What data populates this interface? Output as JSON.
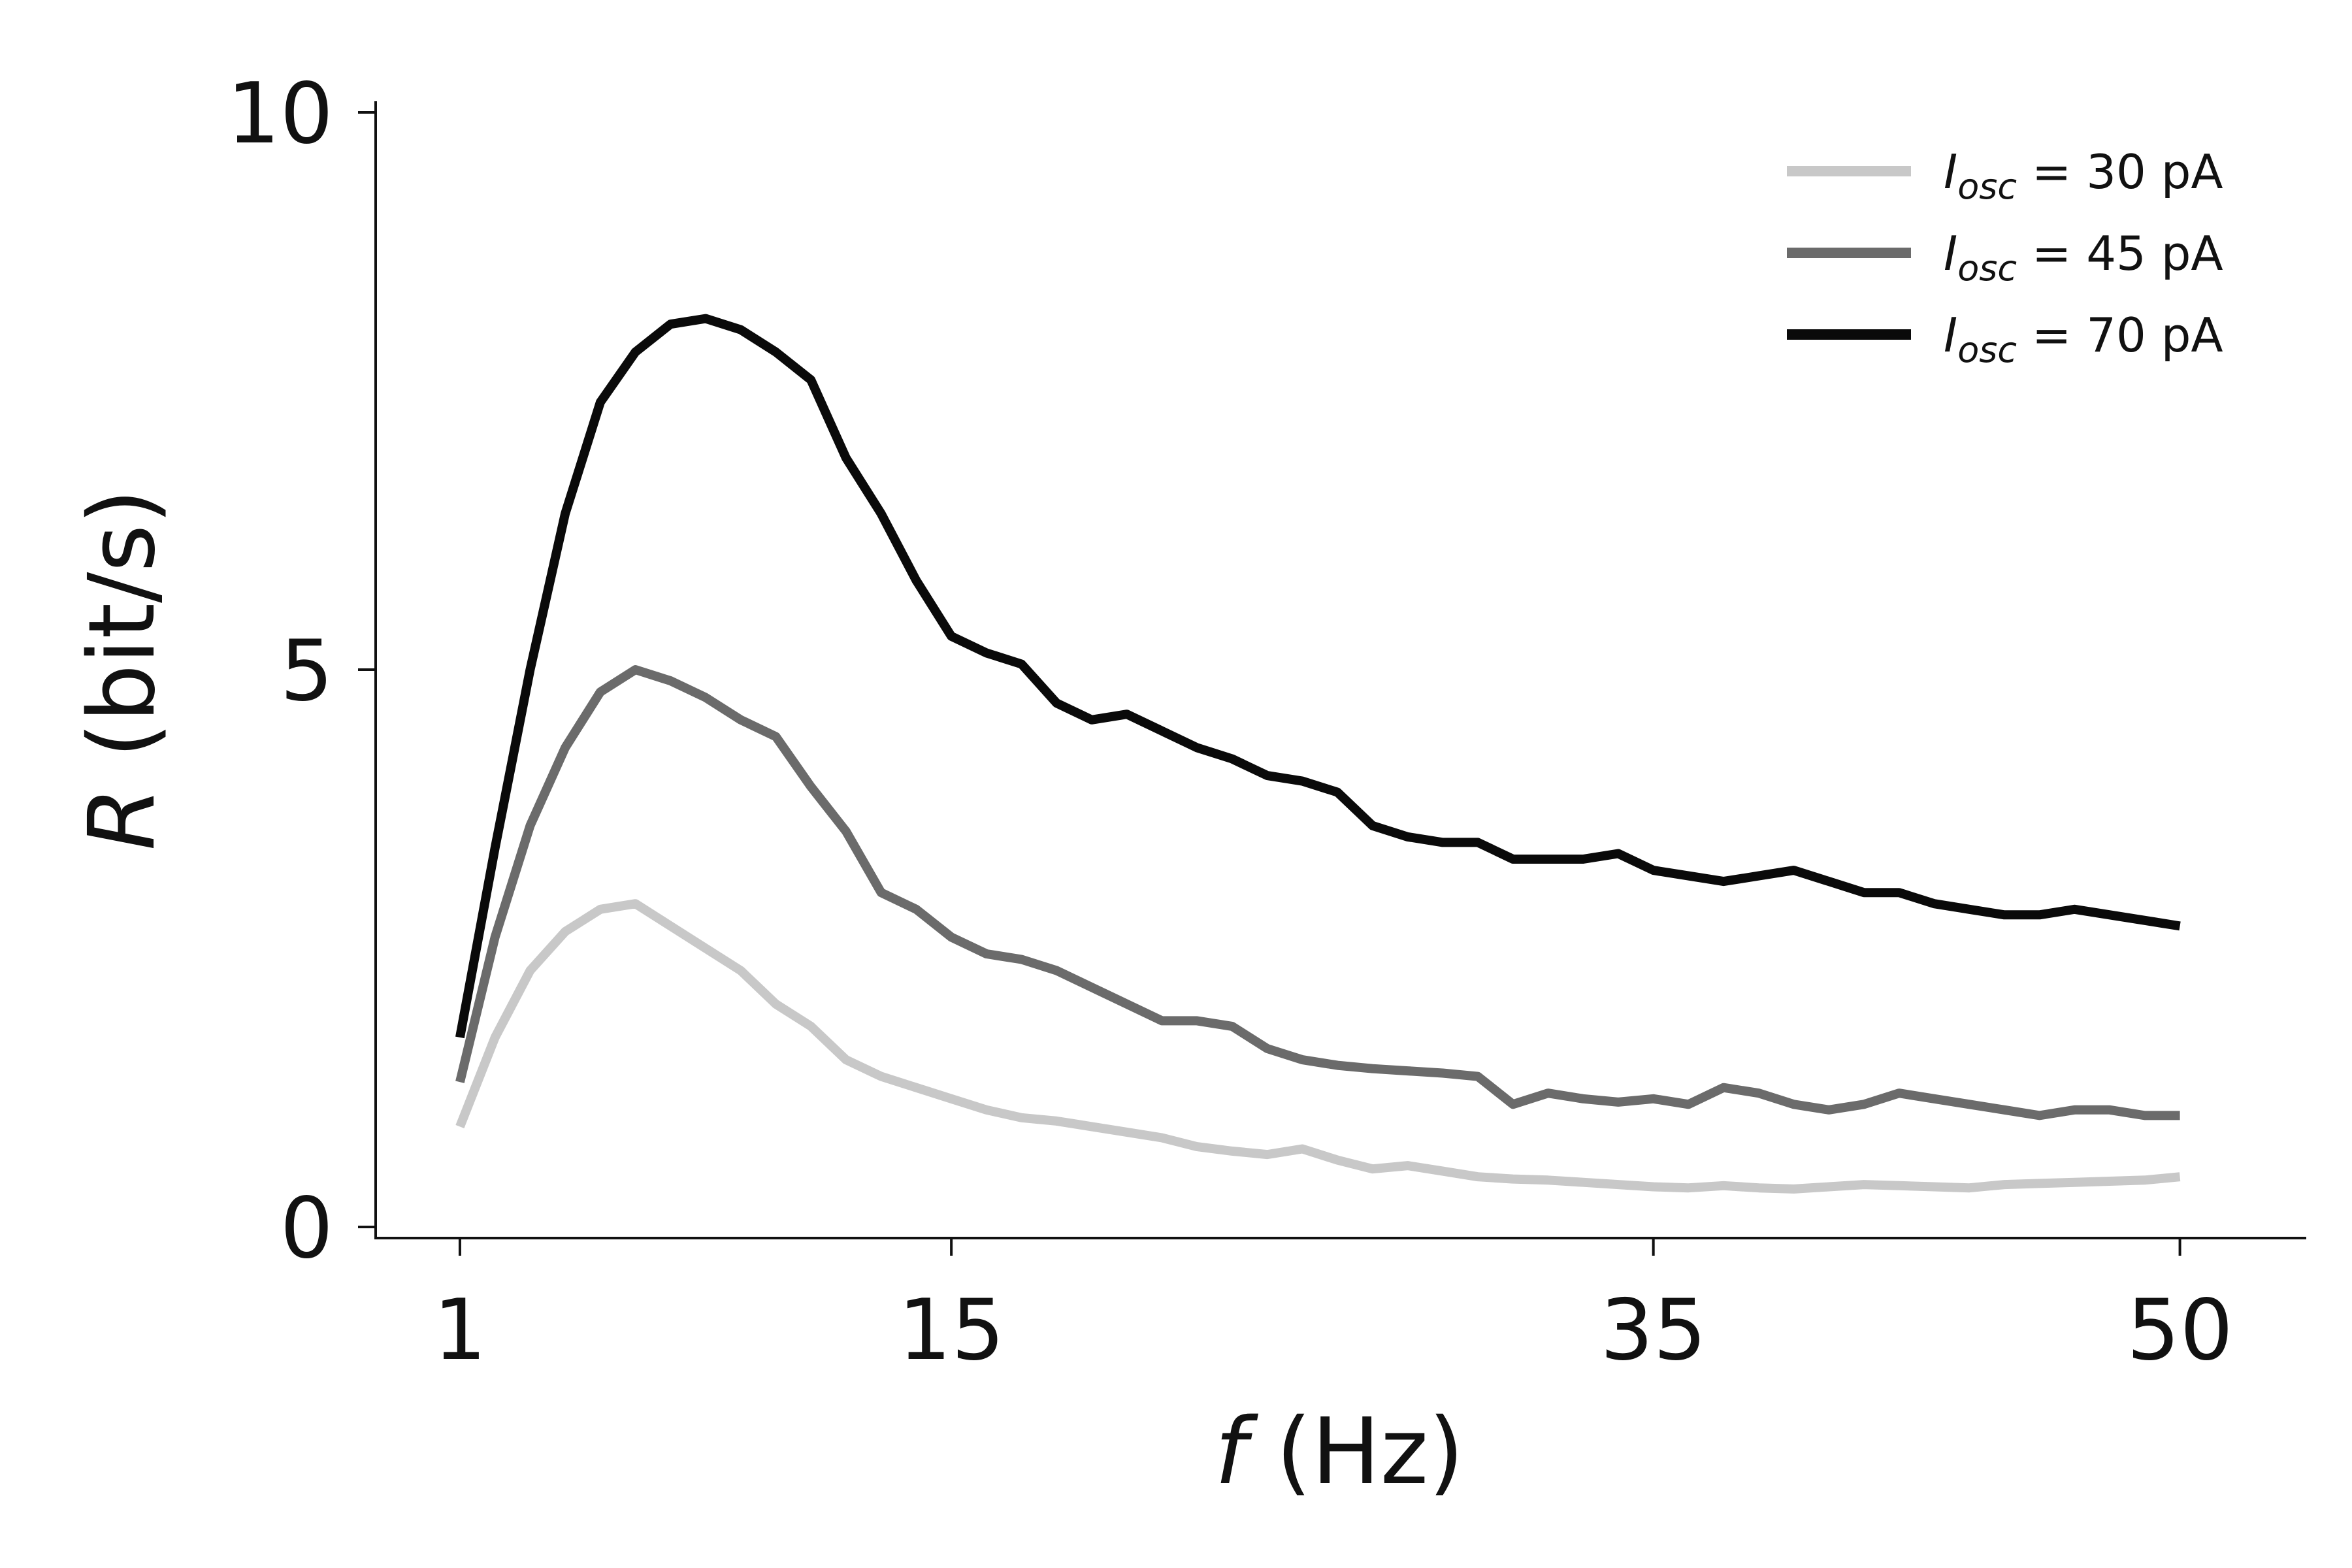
{
  "chart_data": {
    "type": "line",
    "xlabel": {
      "var": "f",
      "unit": " (Hz)"
    },
    "ylabel": {
      "var": "R",
      "unit": " (bit/s)"
    },
    "xlim": [
      -1.4,
      53.6
    ],
    "ylim": [
      -0.1,
      10.1
    ],
    "xticks": [
      1,
      15,
      35,
      50
    ],
    "yticks": [
      0,
      5,
      10
    ],
    "grid": false,
    "legend": "top-right",
    "series": [
      {
        "legend": {
          "sym": "I",
          "sub": "osc",
          "rest": " = 30 pA"
        },
        "color": "#c8c8c8",
        "x": [
          1,
          2,
          3,
          4,
          5,
          6,
          7,
          8,
          9,
          10,
          11,
          12,
          13,
          14,
          15,
          16,
          17,
          18,
          19,
          20,
          21,
          22,
          23,
          24,
          25,
          26,
          27,
          28,
          29,
          30,
          31,
          32,
          33,
          34,
          35,
          36,
          37,
          38,
          39,
          40,
          41,
          42,
          43,
          44,
          45,
          46,
          47,
          48,
          49,
          50
        ],
        "y": [
          0.9,
          1.7,
          2.3,
          2.65,
          2.85,
          2.9,
          2.7,
          2.5,
          2.3,
          2.0,
          1.8,
          1.5,
          1.35,
          1.25,
          1.15,
          1.05,
          0.98,
          0.95,
          0.9,
          0.85,
          0.8,
          0.72,
          0.68,
          0.65,
          0.7,
          0.6,
          0.52,
          0.55,
          0.5,
          0.45,
          0.43,
          0.42,
          0.4,
          0.38,
          0.36,
          0.35,
          0.37,
          0.35,
          0.34,
          0.36,
          0.38,
          0.37,
          0.36,
          0.35,
          0.38,
          0.39,
          0.4,
          0.41,
          0.42,
          0.45
        ]
      },
      {
        "legend": {
          "sym": "I",
          "sub": "osc",
          "rest": " = 45 pA"
        },
        "color": "#6b6b6b",
        "x": [
          1,
          2,
          3,
          4,
          5,
          6,
          7,
          8,
          9,
          10,
          11,
          12,
          13,
          14,
          15,
          16,
          17,
          18,
          19,
          20,
          21,
          22,
          23,
          24,
          25,
          26,
          27,
          28,
          29,
          30,
          31,
          32,
          33,
          34,
          35,
          36,
          37,
          38,
          39,
          40,
          41,
          42,
          43,
          44,
          45,
          46,
          47,
          48,
          49,
          50
        ],
        "y": [
          1.3,
          2.6,
          3.6,
          4.3,
          4.8,
          5.0,
          4.9,
          4.75,
          4.55,
          4.4,
          3.95,
          3.55,
          3.0,
          2.85,
          2.6,
          2.45,
          2.4,
          2.3,
          2.15,
          2.0,
          1.85,
          1.85,
          1.8,
          1.6,
          1.5,
          1.45,
          1.42,
          1.4,
          1.38,
          1.35,
          1.1,
          1.2,
          1.15,
          1.12,
          1.15,
          1.1,
          1.25,
          1.2,
          1.1,
          1.05,
          1.1,
          1.2,
          1.15,
          1.1,
          1.05,
          1.0,
          1.05,
          1.05,
          1.0,
          1.0
        ]
      },
      {
        "legend": {
          "sym": "I",
          "sub": "osc",
          "rest": " = 70 pA"
        },
        "color": "#0a0a0a",
        "x": [
          1,
          2,
          3,
          4,
          5,
          6,
          7,
          8,
          9,
          10,
          11,
          12,
          13,
          14,
          15,
          16,
          17,
          18,
          19,
          20,
          21,
          22,
          23,
          24,
          25,
          26,
          27,
          28,
          29,
          30,
          31,
          32,
          33,
          34,
          35,
          36,
          37,
          38,
          39,
          40,
          41,
          42,
          43,
          44,
          45,
          46,
          47,
          48,
          49,
          50
        ],
        "y": [
          1.7,
          3.4,
          5.0,
          6.4,
          7.4,
          7.85,
          8.1,
          8.15,
          8.05,
          7.85,
          7.6,
          6.9,
          6.4,
          5.8,
          5.3,
          5.15,
          5.05,
          4.7,
          4.55,
          4.6,
          4.45,
          4.3,
          4.2,
          4.05,
          4.0,
          3.9,
          3.6,
          3.5,
          3.45,
          3.45,
          3.3,
          3.3,
          3.3,
          3.35,
          3.2,
          3.15,
          3.1,
          3.15,
          3.2,
          3.1,
          3.0,
          3.0,
          2.9,
          2.85,
          2.8,
          2.8,
          2.85,
          2.8,
          2.75,
          2.7
        ]
      }
    ]
  }
}
